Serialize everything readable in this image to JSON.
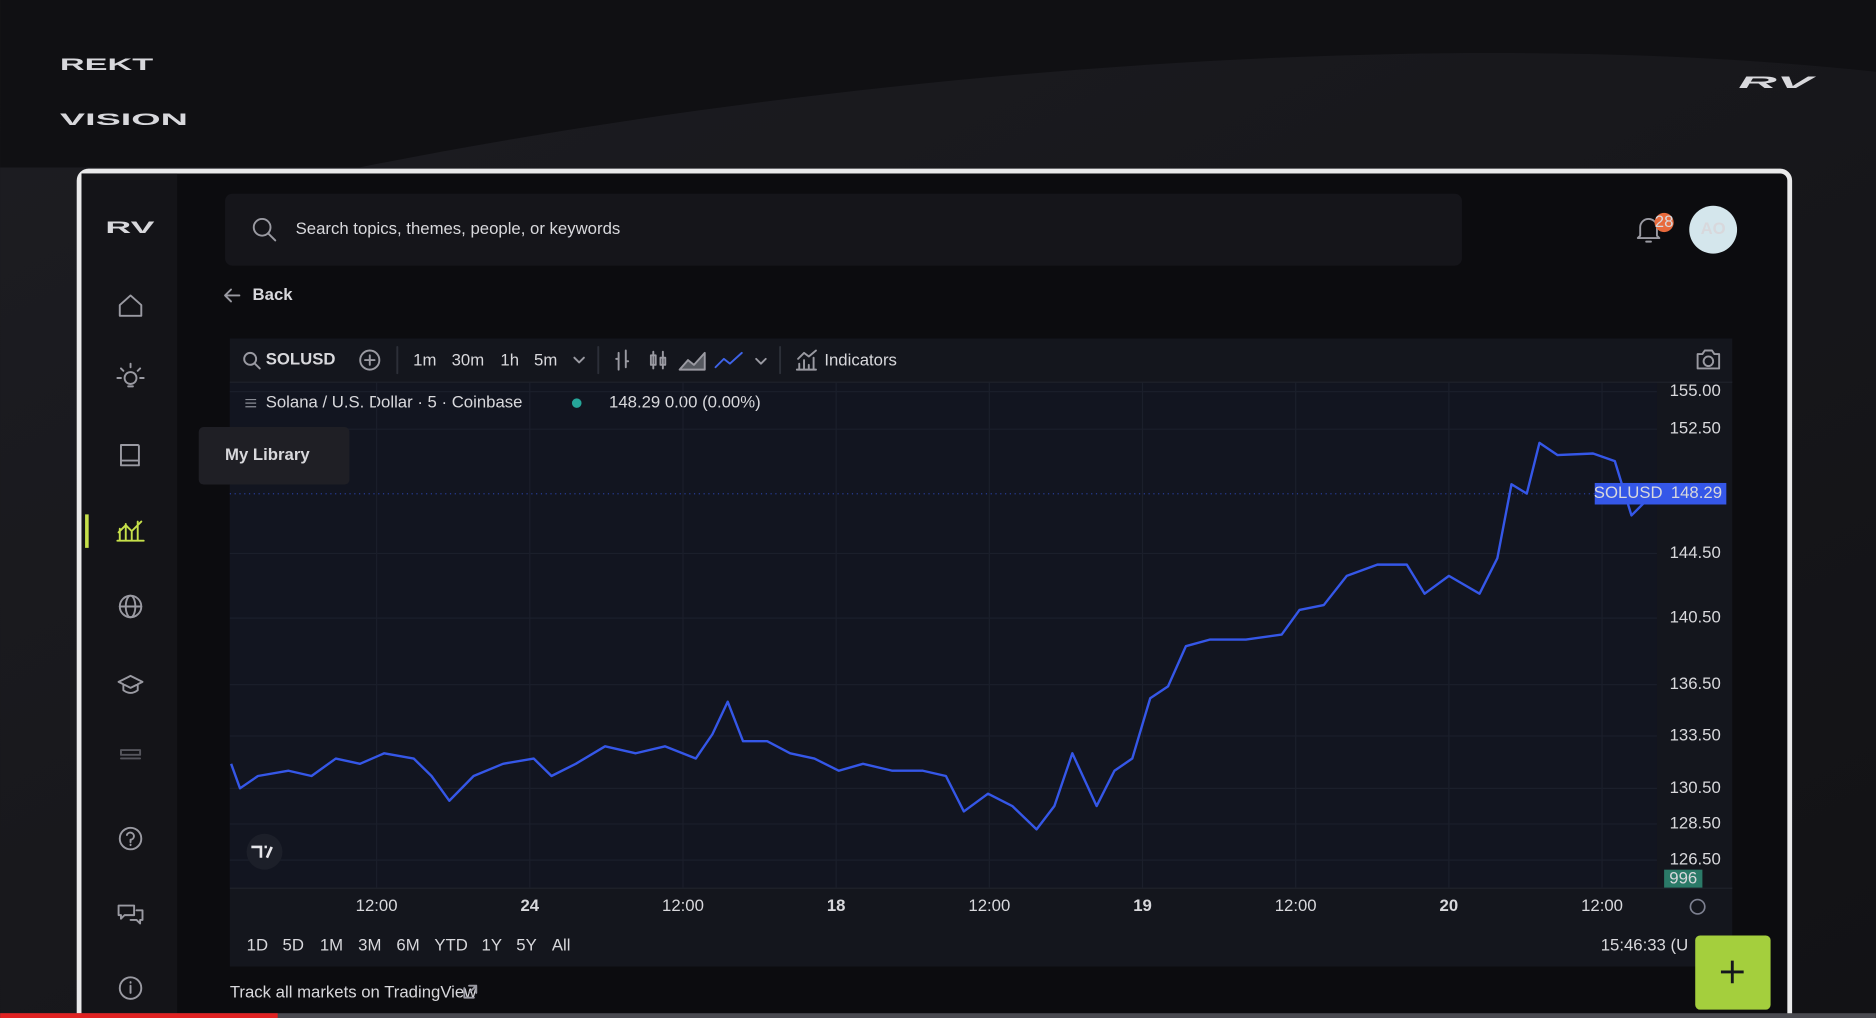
{
  "brand": {
    "line1": "REKT",
    "line2": "VISION",
    "corner_logo": "RV"
  },
  "app": {
    "logo": "RV",
    "search_placeholder": "Search topics, themes, people, or keywords",
    "notification_count": "28",
    "avatar": "AO",
    "back": "Back",
    "tooltip": "My Library"
  },
  "toolbar": {
    "symbol": "SOLUSD",
    "intervals": [
      "1m",
      "30m",
      "1h",
      "5m"
    ],
    "indicators": "Indicators"
  },
  "legend": {
    "title": "Solana / U.S. Dollar · 5 · Coinbase",
    "quote": "148.29 0.00 (0.00%)"
  },
  "chart_data": {
    "type": "line",
    "x": [
      0.6,
      1.3,
      2.7,
      5.1,
      6.9,
      8.8,
      10.7,
      12.6,
      14.9,
      16.3,
      17.7,
      19.6,
      21.9,
      24.3,
      25.7,
      27.6,
      29.9,
      32.3,
      34.6,
      37.0,
      38.3,
      39.5,
      40.7,
      42.6,
      44.4,
      46.3,
      48.2,
      50.1,
      52.4,
      54.8,
      56.6,
      58.0,
      59.9,
      61.8,
      63.7,
      65.1,
      66.5,
      68.4,
      69.8,
      71.2,
      72.6,
      74.0,
      75.4,
      77.3,
      80.1,
      82.9,
      84.3,
      86.2,
      88.0,
      90.4,
      92.7,
      94.1,
      96.0,
      98.4,
      99.8,
      100.9,
      102.1,
      103.1,
      104.5,
      107.3,
      109.0,
      110.3,
      112.0
    ],
    "values": [
      131.9,
      130.5,
      131.2,
      131.5,
      131.2,
      132.2,
      131.9,
      132.5,
      132.2,
      131.2,
      129.8,
      131.2,
      131.9,
      132.2,
      131.2,
      131.9,
      132.9,
      132.5,
      132.9,
      132.2,
      133.6,
      135.5,
      133.2,
      133.2,
      132.5,
      132.2,
      131.5,
      131.9,
      131.5,
      131.5,
      131.2,
      129.2,
      130.2,
      129.5,
      128.2,
      129.5,
      132.5,
      129.5,
      131.5,
      132.2,
      135.7,
      136.4,
      138.8,
      139.2,
      139.2,
      139.5,
      141.0,
      141.3,
      143.1,
      143.8,
      143.8,
      142.0,
      143.1,
      142.0,
      144.2,
      148.9,
      148.3,
      151.6,
      150.8,
      150.9,
      150.4,
      146.9,
      148.29
    ],
    "color": "#3557e8",
    "log_scale": true,
    "grid": true,
    "xlim": [
      0.5,
      112.3
    ],
    "xticks": [
      {
        "value": 12,
        "label": "12:00"
      },
      24,
      {
        "value": 36,
        "label": "12:00"
      },
      {
        "value": 48,
        "label": "18"
      },
      {
        "value": 60,
        "label": "12:00"
      },
      {
        "value": 72,
        "label": "19"
      },
      {
        "value": 84,
        "label": "12:00"
      },
      {
        "value": 96,
        "label": "20"
      },
      {
        "value": 108,
        "label": "12:00"
      }
    ],
    "ylim": [
      125,
      155.6
    ],
    "yticks": [
      {
        "value": 155,
        "label": "155.00"
      },
      {
        "value": 152.5,
        "label": "152.50"
      },
      {
        "value": 144.5,
        "label": "144.50"
      },
      {
        "value": 140.5,
        "label": "140.50"
      },
      {
        "value": 136.5,
        "label": "136.50"
      },
      {
        "value": 133.5,
        "label": "133.50"
      },
      {
        "value": 130.5,
        "label": "130.50"
      },
      {
        "value": 128.5,
        "label": "128.50"
      },
      {
        "value": 126.5,
        "label": "126.50"
      }
    ],
    "last_symbol": "SOLUSD",
    "last_value": 148.29,
    "volume_badge": 996
  },
  "range_buttons": [
    "1D",
    "5D",
    "1M",
    "3M",
    "6M",
    "YTD",
    "1Y",
    "5Y",
    "All"
  ],
  "clock": "15:46:33 (U",
  "footer_link": "Track all markets on TradingView"
}
